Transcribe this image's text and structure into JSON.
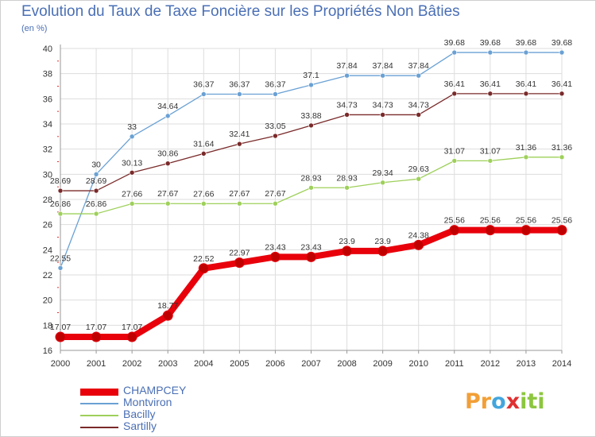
{
  "title": "Evolution du Taux de Taxe Foncière sur les Propriétés Non Bâties",
  "unit": "(en %)",
  "colors": {
    "title": "#4a6fb5",
    "grid": "#dddddd",
    "axis": "#999999",
    "tick_red": "#e03030"
  },
  "logo": {
    "letters": [
      "P",
      "r",
      "o",
      "x",
      "i",
      "t",
      "i"
    ],
    "colors": [
      "#f29f36",
      "#f29f36",
      "#43a6dd",
      "#e03030",
      "#8cc63f",
      "#8cc63f",
      "#8cc63f"
    ]
  },
  "chart_data": {
    "type": "line",
    "title": "Evolution du Taux de Taxe Foncière sur les Propriétés Non Bâties",
    "ylabel": "(en %)",
    "ylim": [
      16,
      40
    ],
    "yticks": [
      16,
      18,
      20,
      22,
      24,
      26,
      28,
      30,
      32,
      34,
      36,
      38,
      40
    ],
    "grid": true,
    "legend_position": "bottom-left",
    "x": [
      2000,
      2001,
      2002,
      2003,
      2004,
      2005,
      2006,
      2007,
      2008,
      2009,
      2010,
      2011,
      2012,
      2013,
      2014
    ],
    "series": [
      {
        "name": "CHAMPCEY",
        "color": "#e8000b",
        "width": 8,
        "marker": 6,
        "values": [
          17.07,
          17.07,
          17.07,
          18.77,
          22.52,
          22.97,
          23.43,
          23.43,
          23.9,
          23.9,
          24.38,
          25.56,
          25.56,
          25.56,
          25.56
        ],
        "labels": [
          "17.07",
          "17.07",
          "17.07",
          "18.77",
          "22.52",
          "22.97",
          "23.43",
          "23.43",
          "23.9",
          "23.9",
          "24.38",
          "25.56",
          "25.56",
          "25.56",
          "25.56"
        ]
      },
      {
        "name": "Montviron",
        "color": "#6aa1d4",
        "width": 1.3,
        "marker": 3,
        "values": [
          22.55,
          30,
          33,
          34.64,
          36.37,
          36.37,
          36.37,
          37.1,
          37.84,
          37.84,
          37.84,
          39.68,
          39.68,
          39.68,
          39.68
        ],
        "labels": [
          "22.55",
          "30",
          "33",
          "34.64",
          "36.37",
          "36.37",
          "36.37",
          "37.1",
          "37.84",
          "37.84",
          "37.84",
          "39.68",
          "39.68",
          "39.68",
          "39.68"
        ]
      },
      {
        "name": "Bacilly",
        "color": "#9ed05a",
        "width": 1.3,
        "marker": 3,
        "values": [
          26.86,
          26.86,
          27.66,
          27.67,
          27.66,
          27.67,
          27.67,
          28.93,
          28.93,
          29.34,
          29.63,
          31.07,
          31.07,
          31.36,
          31.36
        ],
        "labels": [
          "26.86",
          "26.86",
          "27.66",
          "27.67",
          "27.66",
          "27.67",
          "27.67",
          "28.93",
          "28.93",
          "29.34",
          "29.63",
          "31.07",
          "31.07",
          "31.36",
          "31.36"
        ]
      },
      {
        "name": "Sartilly",
        "color": "#7a2a2a",
        "width": 1.3,
        "marker": 3,
        "values": [
          28.69,
          28.69,
          30.13,
          30.86,
          31.64,
          32.41,
          33.05,
          33.88,
          34.73,
          34.73,
          34.73,
          36.41,
          36.41,
          36.41,
          36.41
        ],
        "labels": [
          "28.69",
          "28.69",
          "30.13",
          "30.86",
          "31.64",
          "32.41",
          "33.05",
          "33.88",
          "34.73",
          "34.73",
          "34.73",
          "36.41",
          "36.41",
          "36.41",
          "36.41"
        ]
      }
    ]
  }
}
